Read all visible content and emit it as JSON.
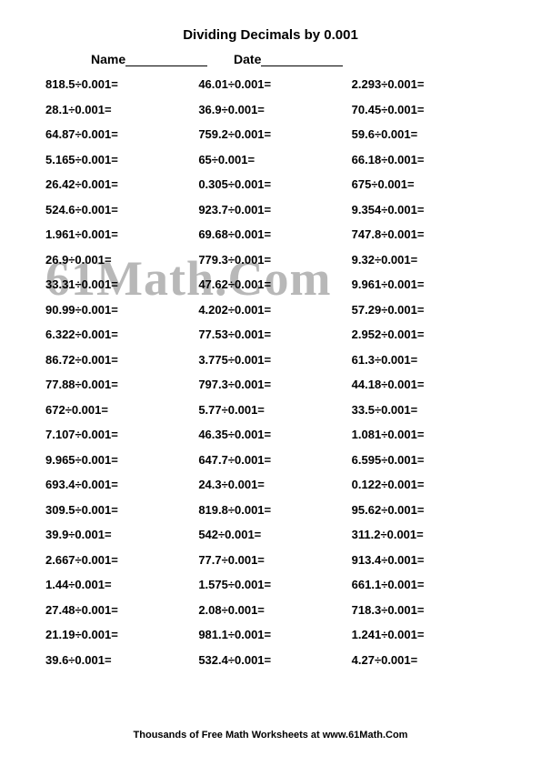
{
  "title": "Dividing Decimals by 0.001",
  "nameLabel": "Name",
  "dateLabel": "Date",
  "watermark": "61Math.Com",
  "footer": "Thousands of Free Math Worksheets at www.61Math.Com",
  "divisor": "0.001",
  "font": {
    "titleSize": 15,
    "problemSize": 13,
    "headerSize": 14,
    "footerSize": 11,
    "watermarkSize": 54,
    "weight": "bold"
  },
  "colors": {
    "text": "#000000",
    "background": "#ffffff",
    "watermark": "#b8b8b8"
  },
  "layout": {
    "columns": 3,
    "rows": 24,
    "columnOrder": "row-major"
  },
  "problems": [
    "818.5÷0.001=",
    "46.01÷0.001=",
    "2.293÷0.001=",
    "28.1÷0.001=",
    "36.9÷0.001=",
    "70.45÷0.001=",
    "64.87÷0.001=",
    "759.2÷0.001=",
    "59.6÷0.001=",
    "5.165÷0.001=",
    "65÷0.001=",
    "66.18÷0.001=",
    "26.42÷0.001=",
    "0.305÷0.001=",
    "675÷0.001=",
    "524.6÷0.001=",
    "923.7÷0.001=",
    "9.354÷0.001=",
    "1.961÷0.001=",
    "69.68÷0.001=",
    "747.8÷0.001=",
    "26.9÷0.001=",
    "779.3÷0.001=",
    "9.32÷0.001=",
    "33.31÷0.001=",
    "47.62÷0.001=",
    "9.961÷0.001=",
    "90.99÷0.001=",
    "4.202÷0.001=",
    "57.29÷0.001=",
    "6.322÷0.001=",
    "77.53÷0.001=",
    "2.952÷0.001=",
    "86.72÷0.001=",
    "3.775÷0.001=",
    "61.3÷0.001=",
    "77.88÷0.001=",
    "797.3÷0.001=",
    "44.18÷0.001=",
    "672÷0.001=",
    "5.77÷0.001=",
    "33.5÷0.001=",
    "7.107÷0.001=",
    "46.35÷0.001=",
    "1.081÷0.001=",
    "9.965÷0.001=",
    "647.7÷0.001=",
    "6.595÷0.001=",
    "693.4÷0.001=",
    "24.3÷0.001=",
    "0.122÷0.001=",
    "309.5÷0.001=",
    "819.8÷0.001=",
    "95.62÷0.001=",
    "39.9÷0.001=",
    "542÷0.001=",
    "311.2÷0.001=",
    "2.667÷0.001=",
    "77.7÷0.001=",
    "913.4÷0.001=",
    "1.44÷0.001=",
    "1.575÷0.001=",
    "661.1÷0.001=",
    "27.48÷0.001=",
    "2.08÷0.001=",
    "718.3÷0.001=",
    "21.19÷0.001=",
    "981.1÷0.001=",
    "1.241÷0.001=",
    "39.6÷0.001=",
    "532.4÷0.001=",
    "4.27÷0.001="
  ]
}
